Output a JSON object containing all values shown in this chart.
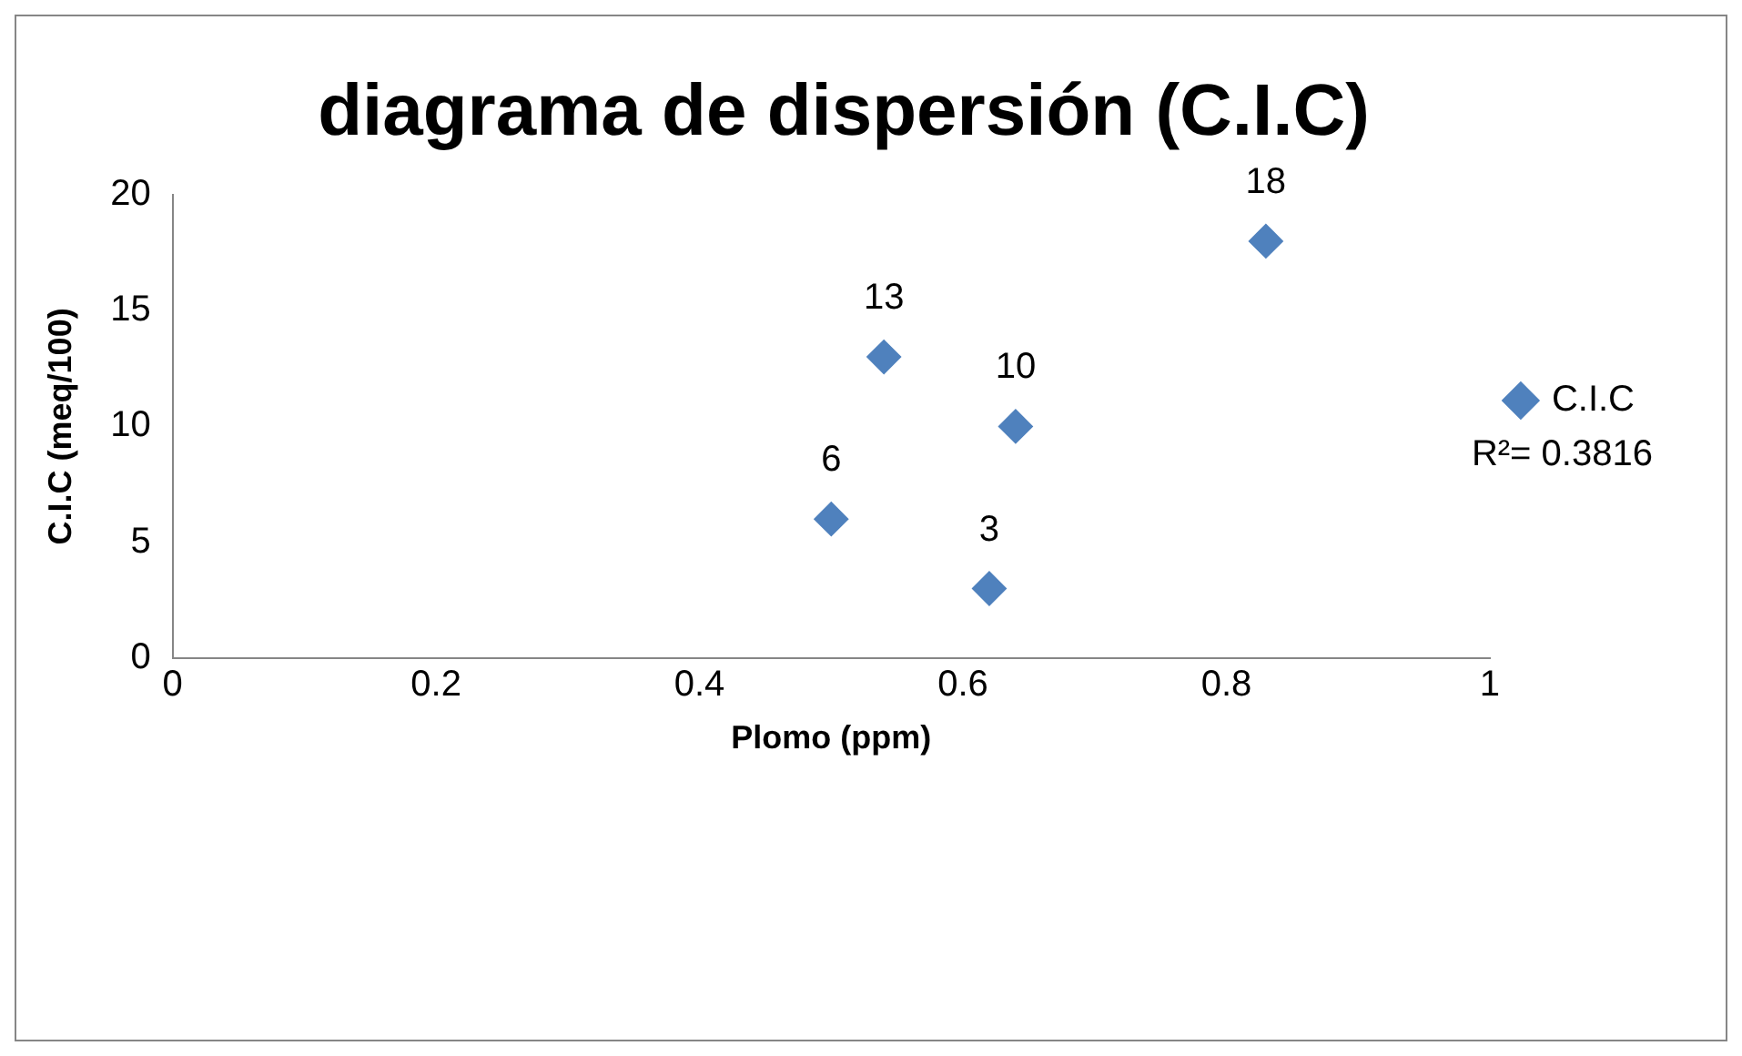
{
  "chart_data": {
    "type": "scatter",
    "title": "diagrama de dispersión (C.I.C)",
    "xlabel": "Plomo (ppm)",
    "ylabel": "C.I.C (meq/100)",
    "series": [
      {
        "name": "C.I.C",
        "color": "#4f81bd",
        "x": [
          0.5,
          0.54,
          0.62,
          0.64,
          0.83
        ],
        "values": [
          6,
          13,
          3,
          10,
          18
        ]
      }
    ],
    "xlim": [
      0,
      1
    ],
    "xticks": [
      0,
      0.2,
      0.4,
      0.6,
      0.8,
      1
    ],
    "ylim": [
      0,
      20
    ],
    "yticks": [
      0,
      5,
      10,
      15,
      20
    ],
    "annotations": [
      "R²= 0.3816"
    ],
    "data_labels": true,
    "grid": false,
    "legend": "right",
    "marker": "diamond"
  }
}
